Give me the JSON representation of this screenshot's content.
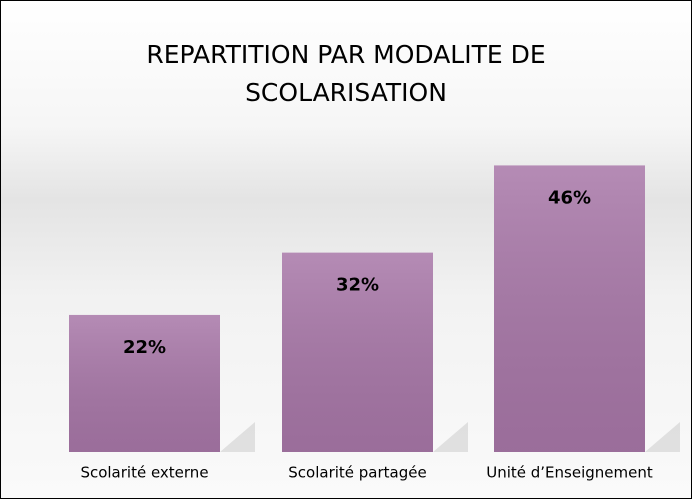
{
  "chart_data": {
    "type": "bar",
    "title": "REPARTITION PAR MODALITE DE SCOLARISATION",
    "categories": [
      "Scolarité externe",
      "Scolarité partagée",
      "Unité d’Enseignement"
    ],
    "values": [
      22,
      32,
      46
    ],
    "value_labels": [
      "22%",
      "32%",
      "46%"
    ],
    "color": "#a877a8"
  }
}
